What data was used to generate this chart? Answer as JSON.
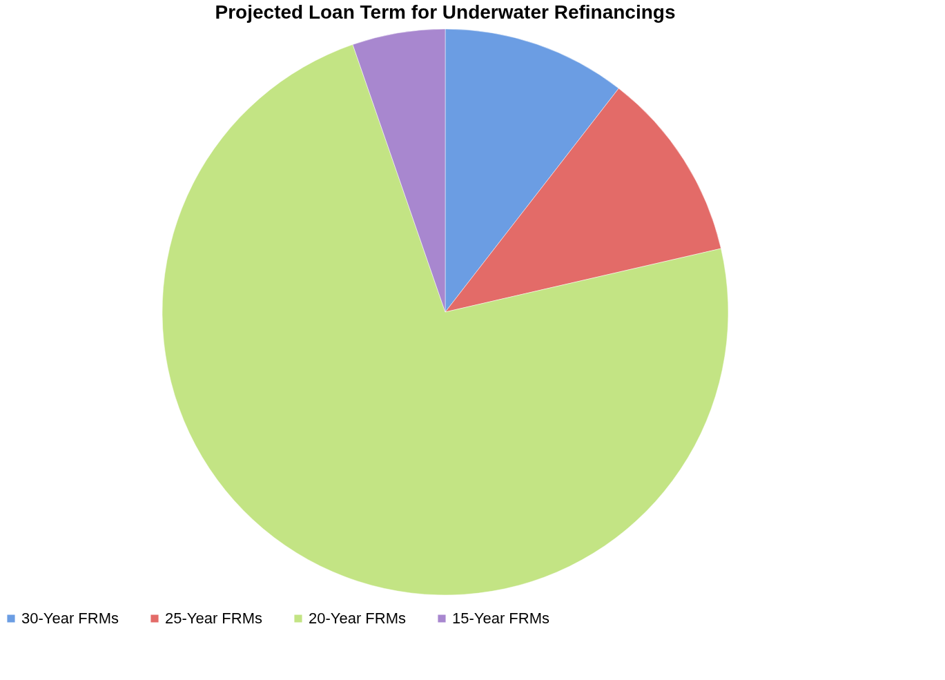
{
  "chart_data": {
    "type": "pie",
    "title": "Projected Loan Term for Underwater Refinancings",
    "categories": [
      "30-Year FRMs",
      "25-Year FRMs",
      "20-Year FRMs",
      "15-Year FRMs"
    ],
    "values": [
      10.5,
      10.9,
      73.3,
      5.3
    ],
    "colors": [
      "#6b9de3",
      "#e36b68",
      "#c3e484",
      "#a887cf"
    ],
    "legend": "bottom"
  }
}
